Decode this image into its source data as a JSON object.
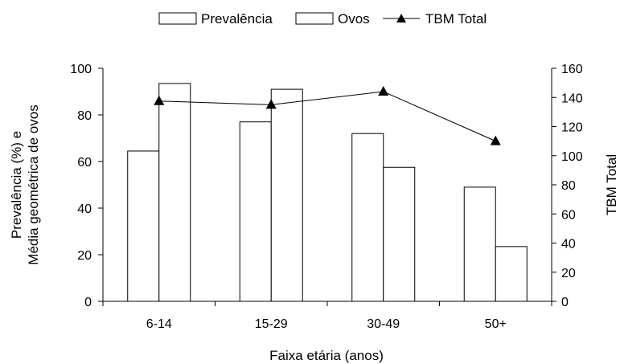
{
  "chart_data": {
    "type": "bar",
    "categories": [
      "6-14",
      "15-29",
      "30-49",
      "50+"
    ],
    "series": [
      {
        "name": "Prevalência",
        "type": "bar",
        "axis": "left",
        "values": [
          64.5,
          77,
          72,
          49
        ]
      },
      {
        "name": "Ovos",
        "type": "bar",
        "axis": "left",
        "values": [
          93.5,
          91,
          57.5,
          23.5
        ]
      },
      {
        "name": "TBM Total",
        "type": "line",
        "axis": "right",
        "marker": "triangle",
        "values": [
          137.5,
          135,
          144,
          110
        ]
      }
    ],
    "xlabel": "Faixa etária (anos)",
    "ylabel_left": [
      "Prevalência (%) e",
      "Média geométrica de ovos"
    ],
    "ylabel_right": "TBM Total",
    "ylim_left": [
      0,
      100
    ],
    "ylim_right": [
      0,
      160
    ],
    "yticks_left": [
      "0",
      "20",
      "40",
      "60",
      "80",
      "100"
    ],
    "yticks_right": [
      "0",
      "20",
      "40",
      "60",
      "80",
      "100",
      "120",
      "140",
      "160"
    ],
    "legend": [
      "Prevalência",
      "Ovos",
      "TBM Total"
    ],
    "legend_position": "top-center",
    "grid": false,
    "colors": {
      "bar_fill": "#ffffff",
      "stroke": "#000000"
    }
  }
}
